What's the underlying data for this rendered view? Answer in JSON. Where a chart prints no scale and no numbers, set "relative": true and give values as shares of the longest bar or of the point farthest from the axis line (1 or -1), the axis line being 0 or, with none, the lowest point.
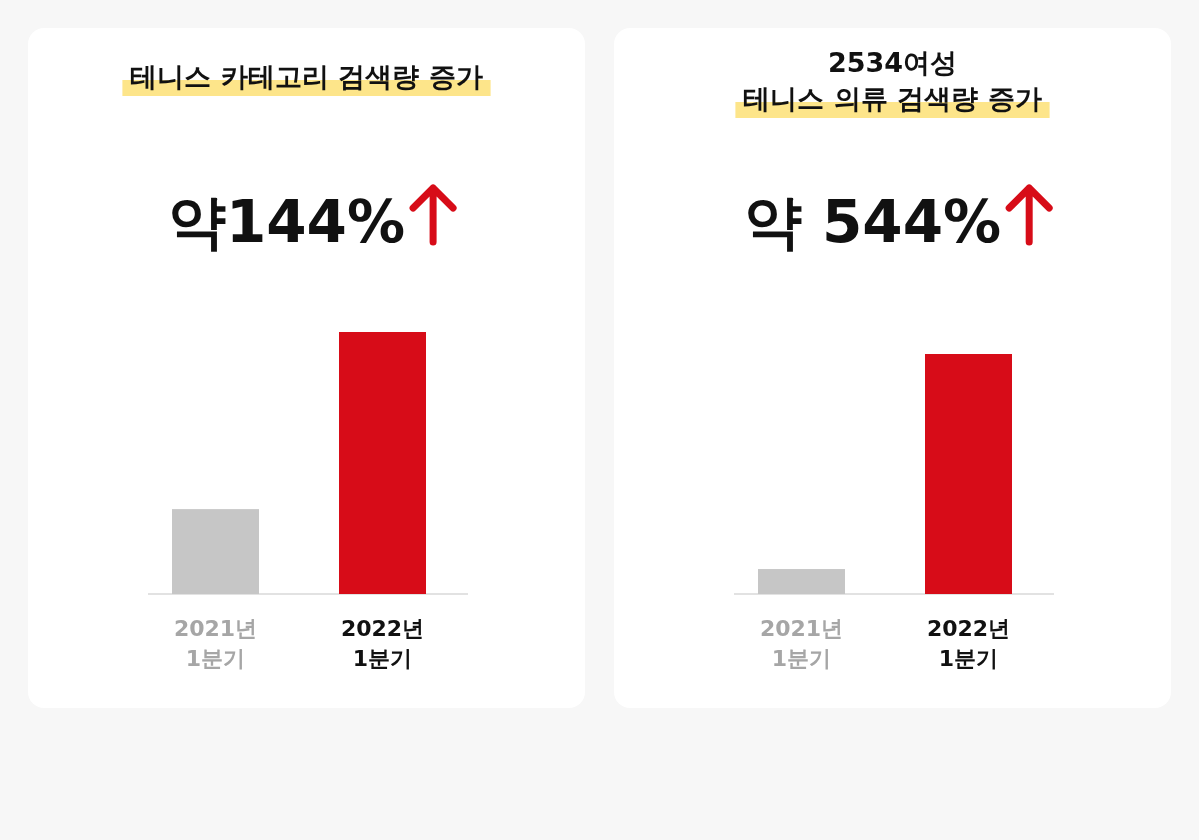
{
  "chart_data": [
    {
      "type": "bar",
      "title": "테니스 카테고리 검색량 증가",
      "categories": [
        "2021년 1분기",
        "2022년 1분기"
      ],
      "colors": [
        "#c6c6c6",
        "#d70c18"
      ],
      "values": [
        0.324,
        1
      ],
      "relative": true,
      "annotations": [
        "약144%"
      ]
    },
    {
      "type": "bar",
      "title": "2534여성",
      "subtitle": "테니스 의류 검색량 증가",
      "categories": [
        "2021년 1분기",
        "2022년 1분기"
      ],
      "colors": [
        "#c6c6c6",
        "#d70c18"
      ],
      "values": [
        0.104,
        1
      ],
      "relative": true,
      "annotations": [
        "약 544%"
      ]
    }
  ]
}
